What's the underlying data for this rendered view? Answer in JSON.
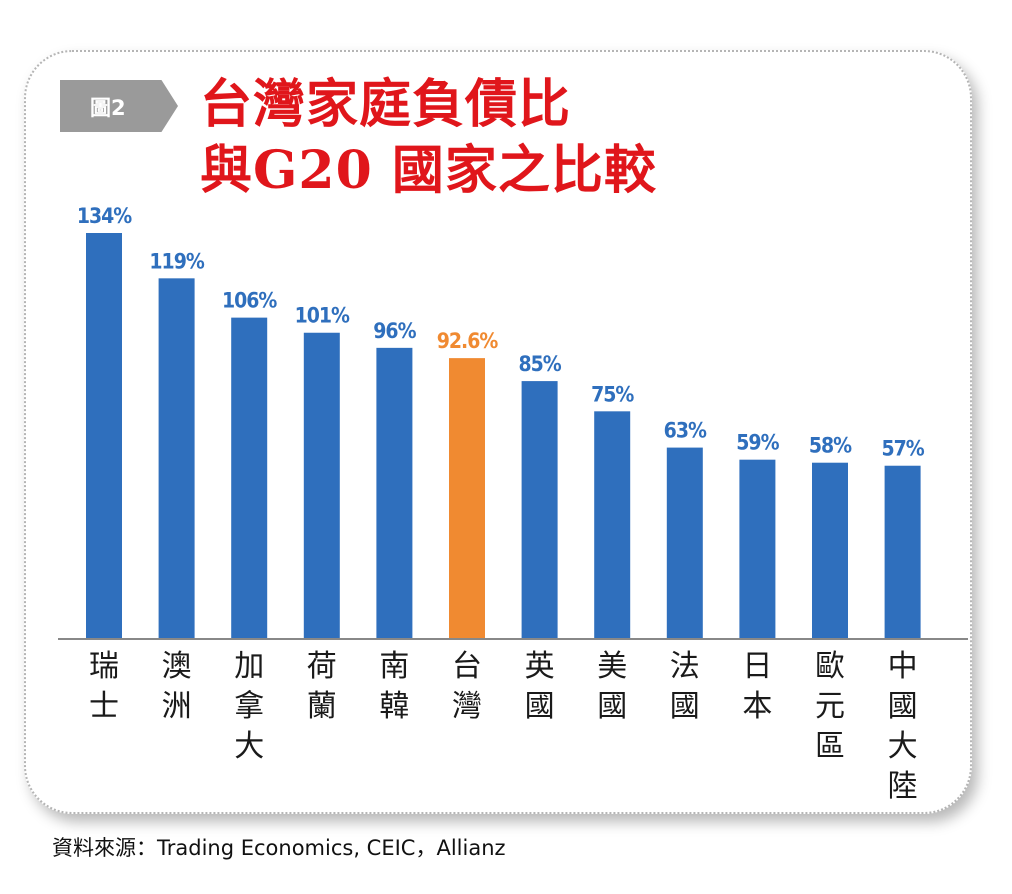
{
  "figure_tag": "圖2",
  "title_line1": "台灣家庭負債比",
  "title_line2": "與G20 國家之比較",
  "source": "資料來源：Trading Economics, CEIC，Allianz",
  "colors": {
    "bar": "#2f6fbd",
    "highlight": "#f08a31",
    "label_default": "#2f6fbd",
    "label_highlight": "#f08a31",
    "axis": "#888888",
    "title": "#e0161b"
  },
  "chart_data": {
    "type": "bar",
    "categories": [
      "瑞士",
      "澳洲",
      "加拿大",
      "荷蘭",
      "南韓",
      "台灣",
      "英國",
      "美國",
      "法國",
      "日本",
      "歐元區",
      "中國大陸"
    ],
    "values": [
      134,
      119,
      106,
      101,
      96,
      92.6,
      85,
      75,
      63,
      59,
      58,
      57
    ],
    "labels": [
      "134%",
      "119%",
      "106%",
      "101%",
      "96%",
      "92.6%",
      "85%",
      "75%",
      "63%",
      "59%",
      "58%",
      "57%"
    ],
    "highlight_category": "台灣",
    "ylim": [
      0,
      134
    ],
    "grid": false,
    "legend": "none"
  }
}
